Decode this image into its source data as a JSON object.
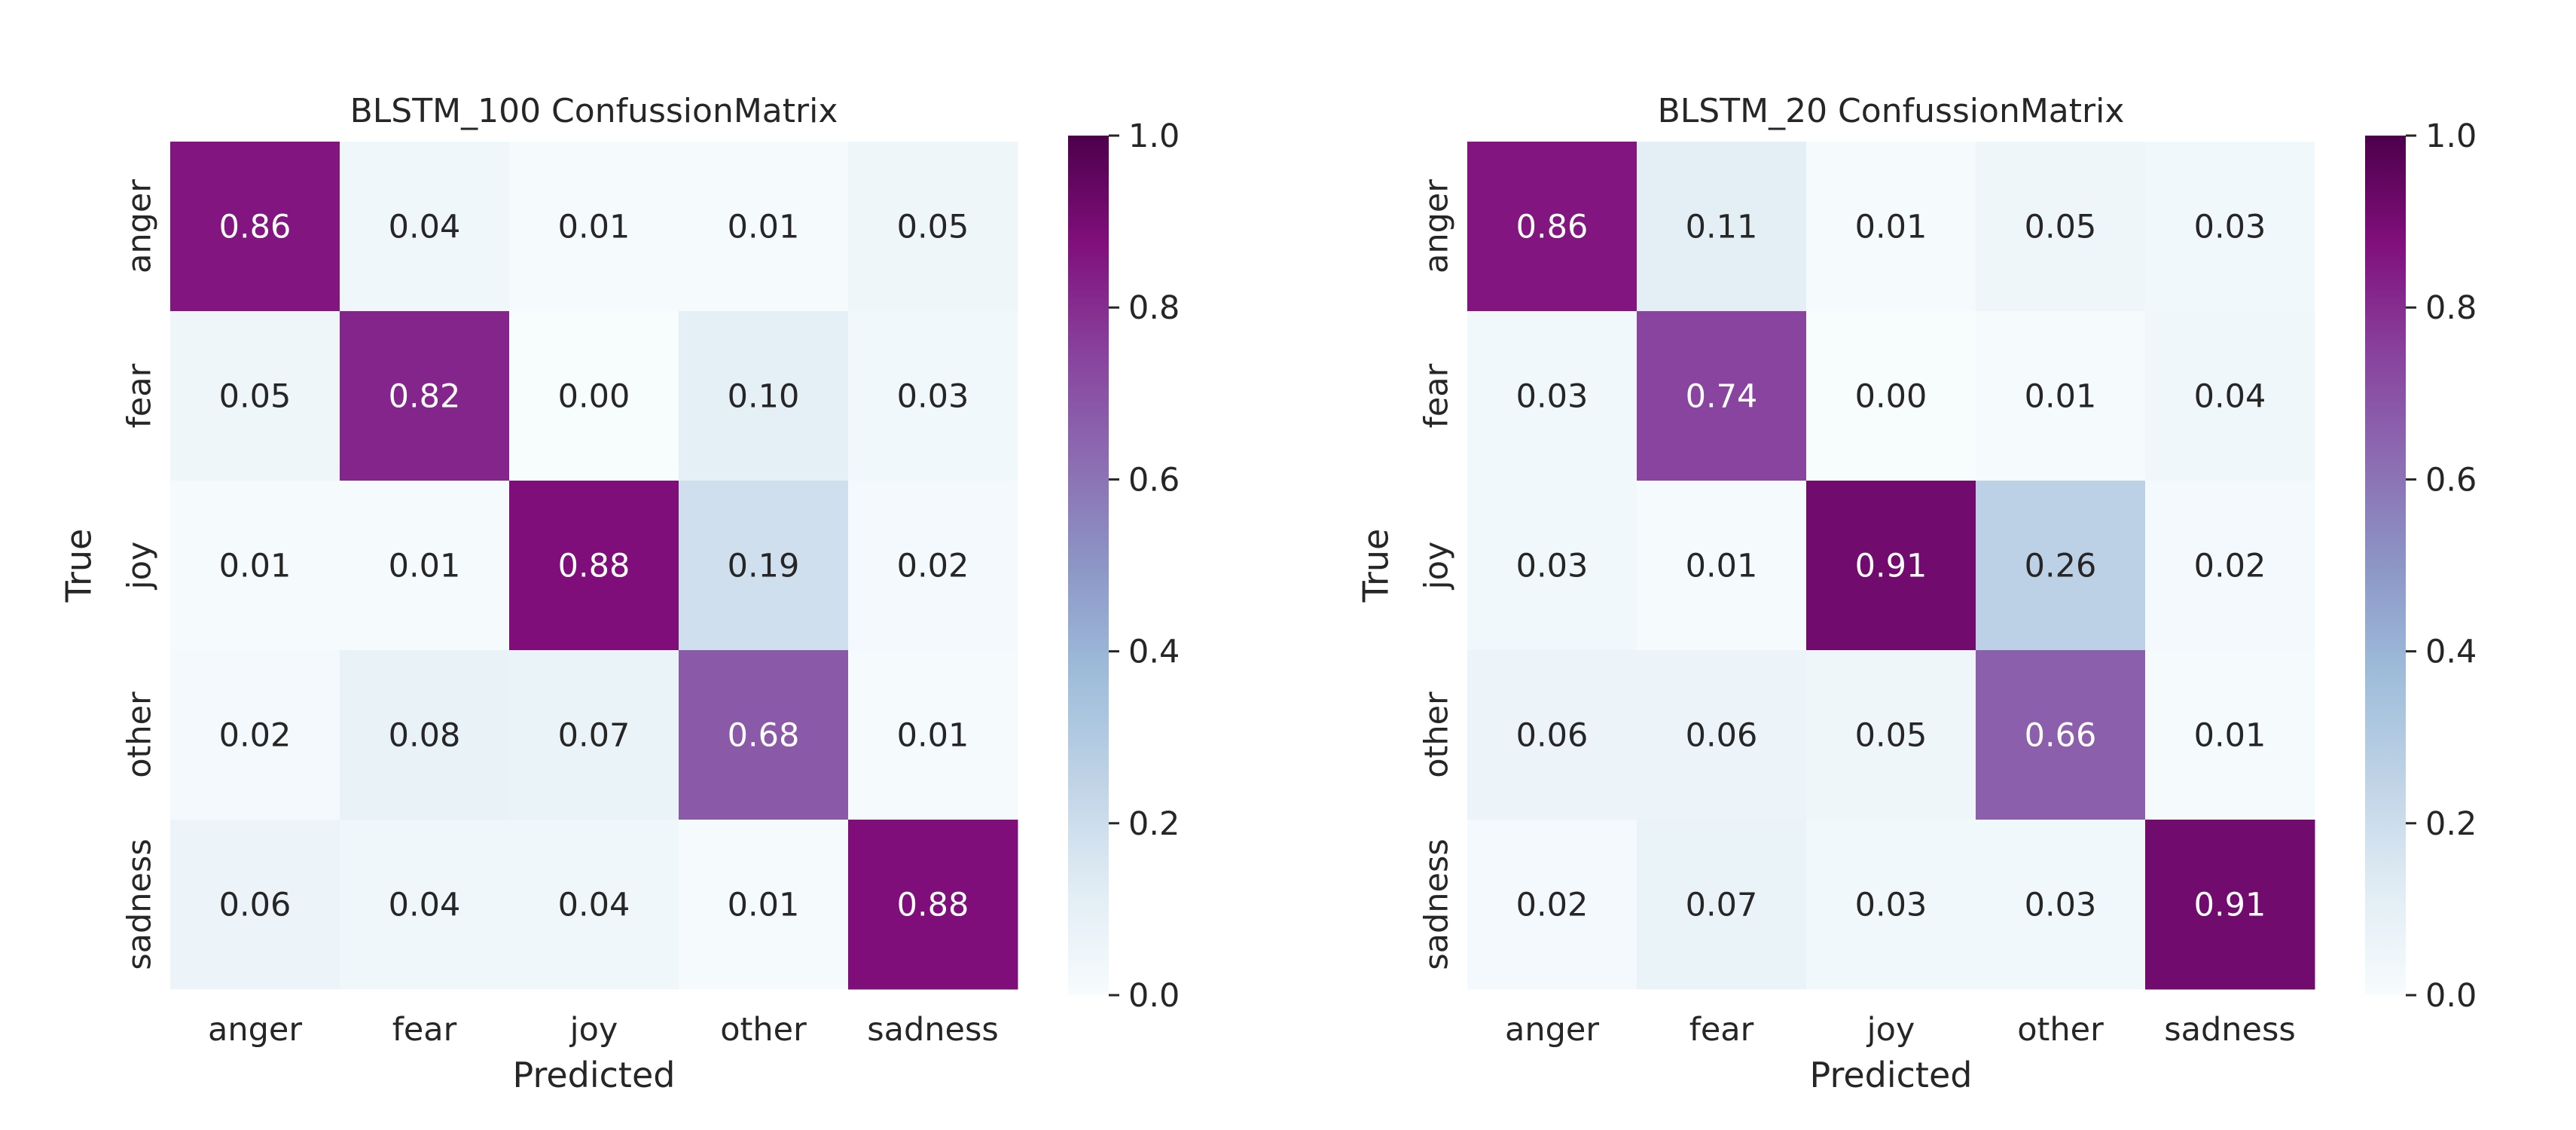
{
  "chart_data": [
    {
      "type": "heatmap",
      "title": "BLSTM_100 ConfussionMatrix",
      "xlabel": "Predicted",
      "ylabel": "True",
      "x_categories": [
        "anger",
        "fear",
        "joy",
        "other",
        "sadness"
      ],
      "y_categories": [
        "anger",
        "fear",
        "joy",
        "other",
        "sadness"
      ],
      "values": [
        [
          0.86,
          0.04,
          0.01,
          0.01,
          0.05
        ],
        [
          0.05,
          0.82,
          0.0,
          0.1,
          0.03
        ],
        [
          0.01,
          0.01,
          0.88,
          0.19,
          0.02
        ],
        [
          0.02,
          0.08,
          0.07,
          0.68,
          0.01
        ],
        [
          0.06,
          0.04,
          0.04,
          0.01,
          0.88
        ]
      ],
      "labels": [
        [
          "0.86",
          "0.04",
          "0.01",
          "0.01",
          "0.05"
        ],
        [
          "0.05",
          "0.82",
          "0.00",
          "0.10",
          "0.03"
        ],
        [
          "0.01",
          "0.01",
          "0.88",
          "0.19",
          "0.02"
        ],
        [
          "0.02",
          "0.08",
          "0.07",
          "0.68",
          "0.01"
        ],
        [
          "0.06",
          "0.04",
          "0.04",
          "0.01",
          "0.88"
        ]
      ],
      "colorbar": {
        "range": [
          0.0,
          1.0
        ],
        "ticks": [
          "0.0",
          "0.2",
          "0.4",
          "0.6",
          "0.8",
          "1.0"
        ],
        "colormap": "BuPu"
      }
    },
    {
      "type": "heatmap",
      "title": "BLSTM_20 ConfussionMatrix",
      "xlabel": "Predicted",
      "ylabel": "True",
      "x_categories": [
        "anger",
        "fear",
        "joy",
        "other",
        "sadness"
      ],
      "y_categories": [
        "anger",
        "fear",
        "joy",
        "other",
        "sadness"
      ],
      "values": [
        [
          0.86,
          0.11,
          0.01,
          0.05,
          0.03
        ],
        [
          0.03,
          0.74,
          0.0,
          0.01,
          0.04
        ],
        [
          0.03,
          0.01,
          0.91,
          0.26,
          0.02
        ],
        [
          0.06,
          0.06,
          0.05,
          0.66,
          0.01
        ],
        [
          0.02,
          0.07,
          0.03,
          0.03,
          0.91
        ]
      ],
      "labels": [
        [
          "0.86",
          "0.11",
          "0.01",
          "0.05",
          "0.03"
        ],
        [
          "0.03",
          "0.74",
          "0.00",
          "0.01",
          "0.04"
        ],
        [
          "0.03",
          "0.01",
          "0.91",
          "0.26",
          "0.02"
        ],
        [
          "0.06",
          "0.06",
          "0.05",
          "0.66",
          "0.01"
        ],
        [
          "0.02",
          "0.07",
          "0.03",
          "0.03",
          "0.91"
        ]
      ],
      "colorbar": {
        "range": [
          0.0,
          1.0
        ],
        "ticks": [
          "0.0",
          "0.2",
          "0.4",
          "0.6",
          "0.8",
          "1.0"
        ],
        "colormap": "BuPu"
      }
    }
  ]
}
